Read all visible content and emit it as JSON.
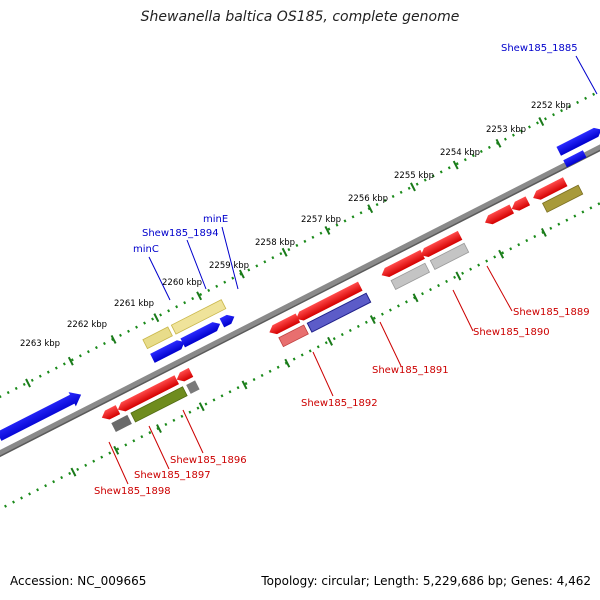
{
  "title": "Shewanella baltica OS185, complete genome",
  "footer": {
    "accession": "Accession: NC_009665",
    "topology": "Topology: circular; Length: 5,229,686 bp; Genes: 4,462"
  },
  "colors": {
    "backbone": "#7a7a7a",
    "tick": "#1a7a1a",
    "forward_label": "#0000cc",
    "reverse_label": "#cc0000"
  },
  "scale_labels": [
    "2252 kbp",
    "2253 kbp",
    "2254 kbp",
    "2255 kbp",
    "2256 kbp",
    "2257 kbp",
    "2258 kbp",
    "2259 kbp",
    "2260 kbp",
    "2261 kbp",
    "2262 kbp",
    "2263 kbp"
  ],
  "forward_gene_labels": [
    "Shew185_1885",
    "minE",
    "Shew185_1894",
    "minC"
  ],
  "reverse_gene_labels": [
    "Shew185_1889",
    "Shew185_1890",
    "Shew185_1891",
    "Shew185_1892",
    "Shew185_1896",
    "Shew185_1897",
    "Shew185_1898"
  ]
}
